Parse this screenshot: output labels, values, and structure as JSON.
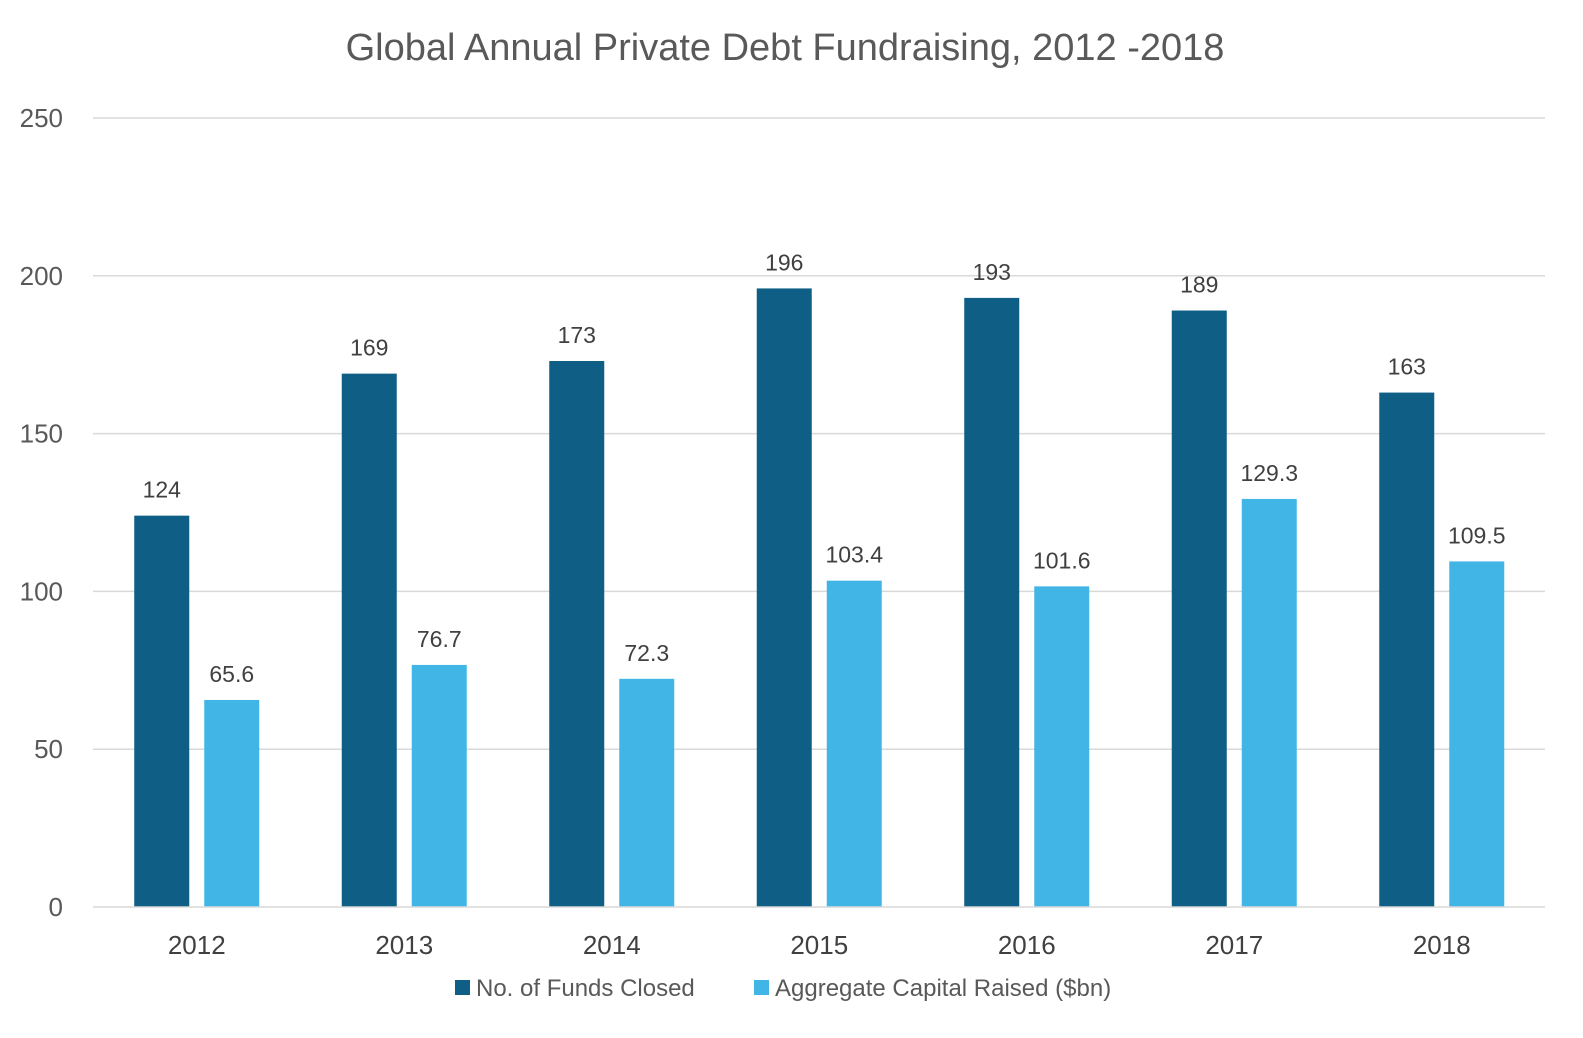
{
  "chart_data": {
    "type": "bar",
    "title": "Global Annual Private Debt Fundraising, 2012 -2018",
    "xlabel": "",
    "ylabel": "",
    "categories": [
      "2012",
      "2013",
      "2014",
      "2015",
      "2016",
      "2017",
      "2018"
    ],
    "series": [
      {
        "name": "No. of Funds Closed",
        "color": "#0f5e85",
        "values": [
          124,
          169,
          173,
          196,
          193,
          189,
          163
        ],
        "labels": [
          "124",
          "169",
          "173",
          "196",
          "193",
          "189",
          "163"
        ]
      },
      {
        "name": "Aggregate Capital Raised ($bn)",
        "color": "#41b6e6",
        "values": [
          65.6,
          76.7,
          72.3,
          103.4,
          101.6,
          129.3,
          109.5
        ],
        "labels": [
          "65.6",
          "76.7",
          "72.3",
          "103.4",
          "101.6",
          "129.3",
          "109.5"
        ]
      }
    ],
    "ylim": [
      0,
      250
    ],
    "yticks": [
      "0",
      "50",
      "100",
      "150",
      "200",
      "250"
    ],
    "grid": true,
    "legend_position": "bottom"
  }
}
